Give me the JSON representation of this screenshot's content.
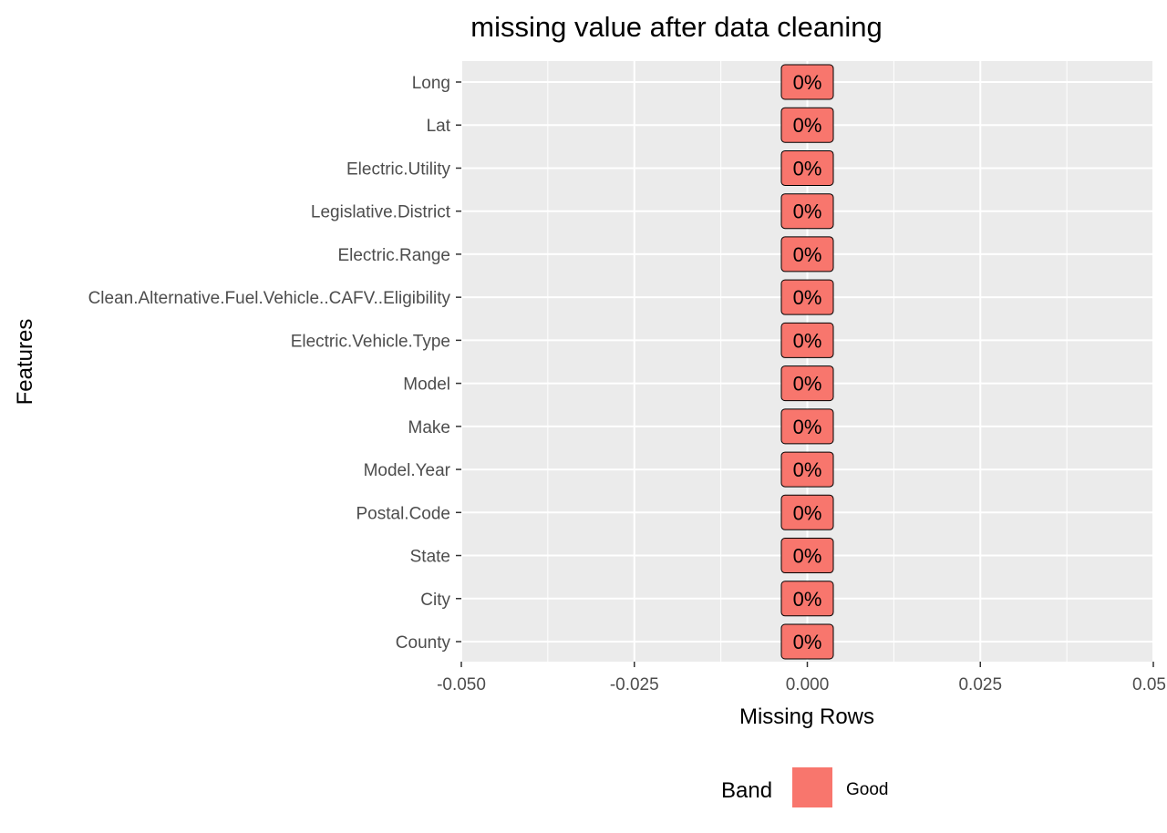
{
  "chart_data": {
    "type": "bar",
    "orientation": "horizontal",
    "title": "missing value after data cleaning",
    "xlabel": "Missing Rows",
    "ylabel": "Features",
    "xlim": [
      -0.05,
      0.05
    ],
    "x_ticks": [
      -0.05,
      -0.025,
      0,
      0.025,
      0.05
    ],
    "x_tick_labels": [
      "-0.050",
      "-0.025",
      "0.000",
      "0.025",
      "0.05"
    ],
    "categories": [
      "Long",
      "Lat",
      "Electric.Utility",
      "Legislative.District",
      "Electric.Range",
      "Clean.Alternative.Fuel.Vehicle..CAFV..Eligibility",
      "Electric.Vehicle.Type",
      "Model",
      "Make",
      "Model.Year",
      "Postal.Code",
      "State",
      "City",
      "County"
    ],
    "values": [
      0,
      0,
      0,
      0,
      0,
      0,
      0,
      0,
      0,
      0,
      0,
      0,
      0,
      0
    ],
    "data_labels": [
      "0%",
      "0%",
      "0%",
      "0%",
      "0%",
      "0%",
      "0%",
      "0%",
      "0%",
      "0%",
      "0%",
      "0%",
      "0%",
      "0%"
    ],
    "band": [
      "Good",
      "Good",
      "Good",
      "Good",
      "Good",
      "Good",
      "Good",
      "Good",
      "Good",
      "Good",
      "Good",
      "Good",
      "Good",
      "Good"
    ],
    "grid": true,
    "legend": {
      "title": "Band",
      "position": "bottom",
      "items": [
        {
          "label": "Good",
          "color": "#F8766D"
        }
      ]
    },
    "colors": {
      "panel": "#EBEBEB",
      "grid": "#FFFFFF",
      "label_fill": "#F8766D"
    }
  }
}
